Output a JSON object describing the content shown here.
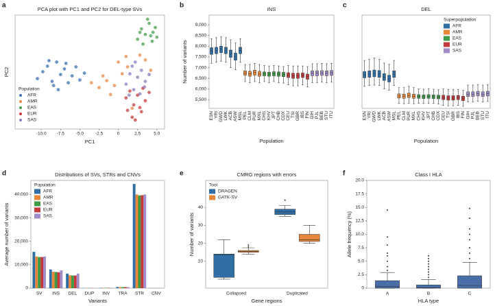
{
  "chart_data": [
    {
      "type": "scatter",
      "label": "a",
      "title": "PCA plot with PC1 and PC2 for DEL-type SVs",
      "x_label": "PC1",
      "y_label": "PC2",
      "legend_title": "Population",
      "legend": "lower left",
      "xlim": [
        -13.4,
        6
      ],
      "ylim": [
        -7.5,
        9
      ],
      "xticks": [
        {
          "value": -10,
          "label": "-10.0"
        },
        -7.5,
        {
          "value": -5,
          "label": "-5.0"
        },
        -2.5,
        0,
        2.5,
        {
          "value": 5,
          "label": "5.0"
        }
      ],
      "series": [
        {
          "name": "AFR",
          "color": "#3f73b5",
          "x": [
            -10.5,
            -9.8,
            -9.2,
            -8.6,
            -8,
            -7.5,
            -7,
            -6.5,
            -6,
            -5.5,
            -5,
            -4.4,
            -8.4,
            -6.8,
            -7.8,
            -9
          ],
          "y": [
            -0.2,
            0.8,
            1.6,
            -0.6,
            2.2,
            0.4,
            1.2,
            -0.8,
            0.2,
            1.5,
            -0.4,
            0.6,
            -1.2,
            2,
            -1.8,
            2.4
          ]
        },
        {
          "name": "AMR",
          "color": "#e8894a",
          "x": [
            -3.5,
            -2.5,
            -1.5,
            -0.5,
            0.5,
            1.2,
            -2,
            0,
            1,
            2.8,
            3.5,
            1.8,
            -1,
            4.2
          ],
          "y": [
            -0.8,
            -1.5,
            -0.5,
            -1.2,
            0.5,
            1.5,
            0.2,
            2.2,
            3,
            3.2,
            2.5,
            -4.5,
            -2.5,
            1
          ]
        },
        {
          "name": "EAS",
          "color": "#48a153",
          "x": [
            2.5,
            3,
            3.5,
            4,
            4.5,
            5,
            3.2,
            3.8,
            4.4,
            4.8,
            2.8,
            4.2
          ],
          "y": [
            5.5,
            7,
            6.2,
            7.8,
            6.5,
            5.8,
            4.8,
            8.4,
            5.2,
            7.2,
            6.5,
            6
          ]
        },
        {
          "name": "EUR",
          "color": "#c83c3c",
          "x": [
            1,
            1.5,
            2,
            2.5,
            3,
            3.5,
            4,
            1.8,
            2.8,
            2.2,
            3.2,
            1.2
          ],
          "y": [
            -3,
            -2,
            -4,
            -2.6,
            -5,
            -3.4,
            -2.2,
            -5.8,
            -4.4,
            -6.2,
            -1.6,
            -4.8
          ]
        },
        {
          "name": "SAS",
          "color": "#8e7cc3",
          "x": [
            1,
            1.5,
            2,
            2.5,
            3,
            3.5,
            4,
            1.8,
            2.8,
            2.2,
            3.4,
            1.4
          ],
          "y": [
            -1,
            0.5,
            -1.8,
            0,
            1,
            -0.6,
            0.4,
            1.6,
            -2.4,
            2.2,
            -1.4,
            -2.6
          ]
        }
      ]
    },
    {
      "type": "box",
      "label": "b",
      "title": "INS",
      "x_label": "Population",
      "y_label": "Number of variants",
      "ylim": [
        5100,
        9450
      ],
      "yticks": [
        {
          "value": 5500,
          "label": "5,500"
        },
        {
          "value": 6000,
          "label": "6,000"
        },
        {
          "value": 6500,
          "label": "6,500"
        },
        {
          "value": 7000,
          "label": "7,000"
        },
        {
          "value": 7500,
          "label": "7,500"
        },
        {
          "value": 8000,
          "label": "8,000"
        },
        {
          "value": 8500,
          "label": "8,500"
        },
        {
          "value": 9000,
          "label": "9,000"
        }
      ],
      "categories": [
        "ESN",
        "YRI",
        "GWD",
        "LWK",
        "ACB",
        "ASW",
        "MSL",
        "PEL",
        "CLM",
        "PUR",
        "MXL",
        "CHS",
        "KHV",
        "JPT",
        "CHB",
        "CDX",
        "CEU",
        "TSI",
        "GBR",
        "IBS",
        "FIN",
        "GIH",
        "PJL",
        "BEB",
        "STU",
        "ITU"
      ],
      "colors": [
        "#2f6fa6",
        "#2f6fa6",
        "#2f6fa6",
        "#2f6fa6",
        "#2f6fa6",
        "#2f6fa6",
        "#2f6fa6",
        "#e6873a",
        "#e6873a",
        "#e6873a",
        "#e6873a",
        "#3f9a48",
        "#3f9a48",
        "#3f9a48",
        "#3f9a48",
        "#3f9a48",
        "#c4393a",
        "#c4393a",
        "#c4393a",
        "#c4393a",
        "#c4393a",
        "#a08bc8",
        "#a08bc8",
        "#a08bc8",
        "#a08bc8",
        "#a08bc8"
      ],
      "boxes": [
        {
          "low": 7200,
          "q1": 7620,
          "median": 7780,
          "q3": 7930,
          "high": 8350
        },
        {
          "low": 7250,
          "q1": 7650,
          "median": 7800,
          "q3": 7950,
          "high": 8400
        },
        {
          "low": 7300,
          "q1": 7700,
          "median": 7850,
          "q3": 8000,
          "high": 8450
        },
        {
          "low": 7250,
          "q1": 7650,
          "median": 7800,
          "q3": 7950,
          "high": 8400
        },
        {
          "low": 7000,
          "q1": 7480,
          "median": 7650,
          "q3": 7820,
          "high": 8300
        },
        {
          "low": 6900,
          "q1": 7350,
          "median": 7500,
          "q3": 7680,
          "high": 8150
        },
        {
          "low": 7250,
          "q1": 7650,
          "median": 7800,
          "q3": 7950,
          "high": 8350
        },
        {
          "low": 6350,
          "q1": 6650,
          "median": 6750,
          "q3": 6850,
          "high": 7150
        },
        {
          "low": 6300,
          "q1": 6600,
          "median": 6720,
          "q3": 6830,
          "high": 7150
        },
        {
          "low": 6350,
          "q1": 6650,
          "median": 6770,
          "q3": 6880,
          "high": 7200
        },
        {
          "low": 6300,
          "q1": 6600,
          "median": 6700,
          "q3": 6830,
          "high": 7150
        },
        {
          "low": 6350,
          "q1": 6620,
          "median": 6720,
          "q3": 6800,
          "high": 7100
        },
        {
          "low": 6300,
          "q1": 6600,
          "median": 6700,
          "q3": 6790,
          "high": 7080
        },
        {
          "low": 6350,
          "q1": 6620,
          "median": 6720,
          "q3": 6810,
          "high": 7100
        },
        {
          "low": 6300,
          "q1": 6600,
          "median": 6700,
          "q3": 6800,
          "high": 7080
        },
        {
          "low": 6280,
          "q1": 6580,
          "median": 6680,
          "q3": 6780,
          "high": 7050
        },
        {
          "low": 6200,
          "q1": 6540,
          "median": 6650,
          "q3": 6760,
          "high": 7100
        },
        {
          "low": 6150,
          "q1": 6500,
          "median": 6620,
          "q3": 6740,
          "high": 7080
        },
        {
          "low": 6150,
          "q1": 6500,
          "median": 6620,
          "q3": 6740,
          "high": 7080
        },
        {
          "low": 6200,
          "q1": 6540,
          "median": 6650,
          "q3": 6750,
          "high": 7080
        },
        {
          "low": 6100,
          "q1": 6460,
          "median": 6580,
          "q3": 6700,
          "high": 7050
        },
        {
          "low": 6300,
          "q1": 6620,
          "median": 6740,
          "q3": 6850,
          "high": 7180
        },
        {
          "low": 6300,
          "q1": 6620,
          "median": 6740,
          "q3": 6850,
          "high": 7180
        },
        {
          "low": 6320,
          "q1": 6640,
          "median": 6750,
          "q3": 6860,
          "high": 7200
        },
        {
          "low": 6300,
          "q1": 6620,
          "median": 6740,
          "q3": 6850,
          "high": 7180
        },
        {
          "low": 6320,
          "q1": 6640,
          "median": 6760,
          "q3": 6870,
          "high": 7200
        }
      ]
    },
    {
      "type": "box",
      "label": "c",
      "title": "DEL",
      "x_label": "Population",
      "legend_title": "Superpopulation",
      "legend": "upper right",
      "legend_entries": [
        {
          "name": "AFR",
          "color": "#2f6fa6"
        },
        {
          "name": "AMR",
          "color": "#e6873a"
        },
        {
          "name": "EAS",
          "color": "#3f9a48"
        },
        {
          "name": "EUR",
          "color": "#c4393a"
        },
        {
          "name": "SAS",
          "color": "#a08bc8"
        }
      ],
      "ylim": [
        4400,
        8000
      ],
      "categories": [
        "ESN",
        "YRI",
        "GWD",
        "LWK",
        "ACB",
        "ASW",
        "MSL",
        "PEL",
        "CLM",
        "PUR",
        "MXL",
        "CHS",
        "KHV",
        "JPT",
        "CHB",
        "CDX",
        "CEU",
        "TSI",
        "GBR",
        "IBS",
        "FIN",
        "GIH",
        "PJL",
        "BEB",
        "STU",
        "ITU"
      ],
      "colors": [
        "#2f6fa6",
        "#2f6fa6",
        "#2f6fa6",
        "#2f6fa6",
        "#2f6fa6",
        "#2f6fa6",
        "#2f6fa6",
        "#e6873a",
        "#e6873a",
        "#e6873a",
        "#e6873a",
        "#3f9a48",
        "#3f9a48",
        "#3f9a48",
        "#3f9a48",
        "#3f9a48",
        "#c4393a",
        "#c4393a",
        "#c4393a",
        "#c4393a",
        "#c4393a",
        "#a08bc8",
        "#a08bc8",
        "#a08bc8",
        "#a08bc8",
        "#a08bc8"
      ],
      "boxes": [
        {
          "low": 5250,
          "q1": 5580,
          "median": 5700,
          "q3": 5820,
          "high": 6250
        },
        {
          "low": 5280,
          "q1": 5600,
          "median": 5720,
          "q3": 5850,
          "high": 6300
        },
        {
          "low": 5300,
          "q1": 5620,
          "median": 5750,
          "q3": 5880,
          "high": 6350
        },
        {
          "low": 5280,
          "q1": 5600,
          "median": 5730,
          "q3": 5860,
          "high": 6300
        },
        {
          "low": 5150,
          "q1": 5480,
          "median": 5600,
          "q3": 5740,
          "high": 6150
        },
        {
          "low": 5100,
          "q1": 5420,
          "median": 5540,
          "q3": 5680,
          "high": 6100
        },
        {
          "low": 5280,
          "q1": 5600,
          "median": 5720,
          "q3": 5850,
          "high": 6250
        },
        {
          "low": 4600,
          "q1": 4800,
          "median": 4880,
          "q3": 4960,
          "high": 5200
        },
        {
          "low": 4580,
          "q1": 4790,
          "median": 4870,
          "q3": 4950,
          "high": 5200
        },
        {
          "low": 4600,
          "q1": 4820,
          "median": 4900,
          "q3": 4990,
          "high": 5250
        },
        {
          "low": 4580,
          "q1": 4790,
          "median": 4870,
          "q3": 4950,
          "high": 5200
        },
        {
          "low": 4600,
          "q1": 4790,
          "median": 4860,
          "q3": 4930,
          "high": 5150
        },
        {
          "low": 4590,
          "q1": 4780,
          "median": 4850,
          "q3": 4920,
          "high": 5140
        },
        {
          "low": 4600,
          "q1": 4790,
          "median": 4860,
          "q3": 4930,
          "high": 5150
        },
        {
          "low": 4590,
          "q1": 4780,
          "median": 4850,
          "q3": 4920,
          "high": 5140
        },
        {
          "low": 4570,
          "q1": 4770,
          "median": 4840,
          "q3": 4910,
          "high": 5120
        },
        {
          "low": 4520,
          "q1": 4740,
          "median": 4820,
          "q3": 4910,
          "high": 5150
        },
        {
          "low": 4500,
          "q1": 4720,
          "median": 4800,
          "q3": 4890,
          "high": 5130
        },
        {
          "low": 4500,
          "q1": 4720,
          "median": 4800,
          "q3": 4890,
          "high": 5130
        },
        {
          "low": 4520,
          "q1": 4740,
          "median": 4820,
          "q3": 4900,
          "high": 5130
        },
        {
          "low": 4480,
          "q1": 4700,
          "median": 4780,
          "q3": 4870,
          "high": 5100
        },
        {
          "low": 4650,
          "q1": 4860,
          "median": 4950,
          "q3": 5040,
          "high": 5300
        },
        {
          "low": 4650,
          "q1": 4860,
          "median": 4950,
          "q3": 5040,
          "high": 5300
        },
        {
          "low": 4670,
          "q1": 4880,
          "median": 4970,
          "q3": 5060,
          "high": 5320
        },
        {
          "low": 4650,
          "q1": 4860,
          "median": 4950,
          "q3": 5040,
          "high": 5300
        },
        {
          "low": 4670,
          "q1": 4880,
          "median": 4970,
          "q3": 5060,
          "high": 5320
        }
      ]
    },
    {
      "type": "bar",
      "label": "d",
      "title": "Distributions of SVs, STRs and CNVs",
      "x_label": "Variants",
      "y_label": "Average number of variants",
      "legend_title": "Population",
      "legend": "upper left",
      "ylim": [
        0,
        46000
      ],
      "yticks": [
        0,
        {
          "value": 10000,
          "label": "10,000"
        },
        {
          "value": 20000,
          "label": "20,000"
        },
        {
          "value": 30000,
          "label": "30,000"
        },
        {
          "value": 40000,
          "label": "40,000"
        }
      ],
      "categories": [
        "SV",
        "INS",
        "DEL",
        "DUP",
        "INV",
        "TRA",
        "STR",
        "CNV"
      ],
      "series": [
        {
          "name": "AFR",
          "color": "#2f6fa6",
          "values": [
            15500,
            8000,
            6200,
            100,
            150,
            500,
            44500,
            50
          ]
        },
        {
          "name": "AMR",
          "color": "#e6873a",
          "values": [
            13500,
            7000,
            5500,
            90,
            140,
            450,
            40000,
            45
          ]
        },
        {
          "name": "EAS",
          "color": "#3f9a48",
          "values": [
            13300,
            6900,
            5400,
            90,
            140,
            450,
            39600,
            45
          ]
        },
        {
          "name": "EUR",
          "color": "#c4393a",
          "values": [
            13300,
            6800,
            5400,
            90,
            140,
            450,
            39700,
            45
          ]
        },
        {
          "name": "SAS",
          "color": "#a08bc8",
          "values": [
            13500,
            7600,
            6200,
            90,
            140,
            450,
            40000,
            45
          ]
        }
      ]
    },
    {
      "type": "box",
      "label": "e",
      "title": "CMRG regions with errors",
      "x_label": "Gene regions",
      "y_label": "Number of variants",
      "legend_title": "Tool",
      "legend": "upper left",
      "ylim": [
        -5,
        55
      ],
      "yticks": [
        10,
        20,
        30,
        40
      ],
      "categories": [
        "Collapsed",
        "Duplicated"
      ],
      "series": [
        {
          "name": "DRAGEN",
          "color": "#2f6fa6",
          "boxes": [
            {
              "low": 0,
              "q1": 1,
              "median": 13.5,
              "q3": 14,
              "high": 22
            },
            {
              "low": 35,
              "q1": 36,
              "median": 37.5,
              "q3": 39,
              "high": 41
            }
          ],
          "outliers": [
            [],
            [
              44
            ]
          ]
        },
        {
          "name": "GATK-SV",
          "color": "#e6873a",
          "boxes": [
            {
              "low": 14,
              "q1": 15,
              "median": 15.5,
              "q3": 16,
              "high": 17.5
            },
            {
              "low": 20,
              "q1": 21,
              "median": 22,
              "q3": 25,
              "high": 30
            }
          ],
          "outliers": [
            [
              18,
              19
            ],
            []
          ]
        }
      ]
    },
    {
      "type": "box",
      "label": "f",
      "title": "Class I HLA",
      "x_label": "HLA type",
      "y_label": "Allele frequency (%)",
      "ylim": [
        0,
        20
      ],
      "yticks": [
        0,
        2.5,
        {
          "value": 5,
          "label": "5.0"
        },
        7.5,
        {
          "value": 10,
          "label": "10.0"
        },
        12.5,
        {
          "value": 15,
          "label": "15.0"
        },
        17.5,
        {
          "value": 20,
          "label": "20.0"
        }
      ],
      "categories": [
        "A",
        "B",
        "C"
      ],
      "color": "#4a6ea8",
      "boxes": [
        {
          "low": 0,
          "q1": 0,
          "median": 0.3,
          "q3": 1.4,
          "high": 2.9
        },
        {
          "low": 0,
          "q1": 0,
          "median": 0.1,
          "q3": 0.6,
          "high": 1.6
        },
        {
          "low": 0,
          "q1": 0,
          "median": 0.5,
          "q3": 2.3,
          "high": 4.8
        }
      ],
      "outliers": [
        [
          3.3,
          4,
          5,
          6,
          6.5,
          8,
          9.5,
          14.5
        ],
        [
          2,
          2.5,
          3,
          3.5,
          4,
          4.5,
          5,
          5.5,
          6
        ],
        [
          5.5,
          6.5,
          7.5,
          9,
          10,
          11,
          13,
          14.8
        ]
      ]
    }
  ]
}
